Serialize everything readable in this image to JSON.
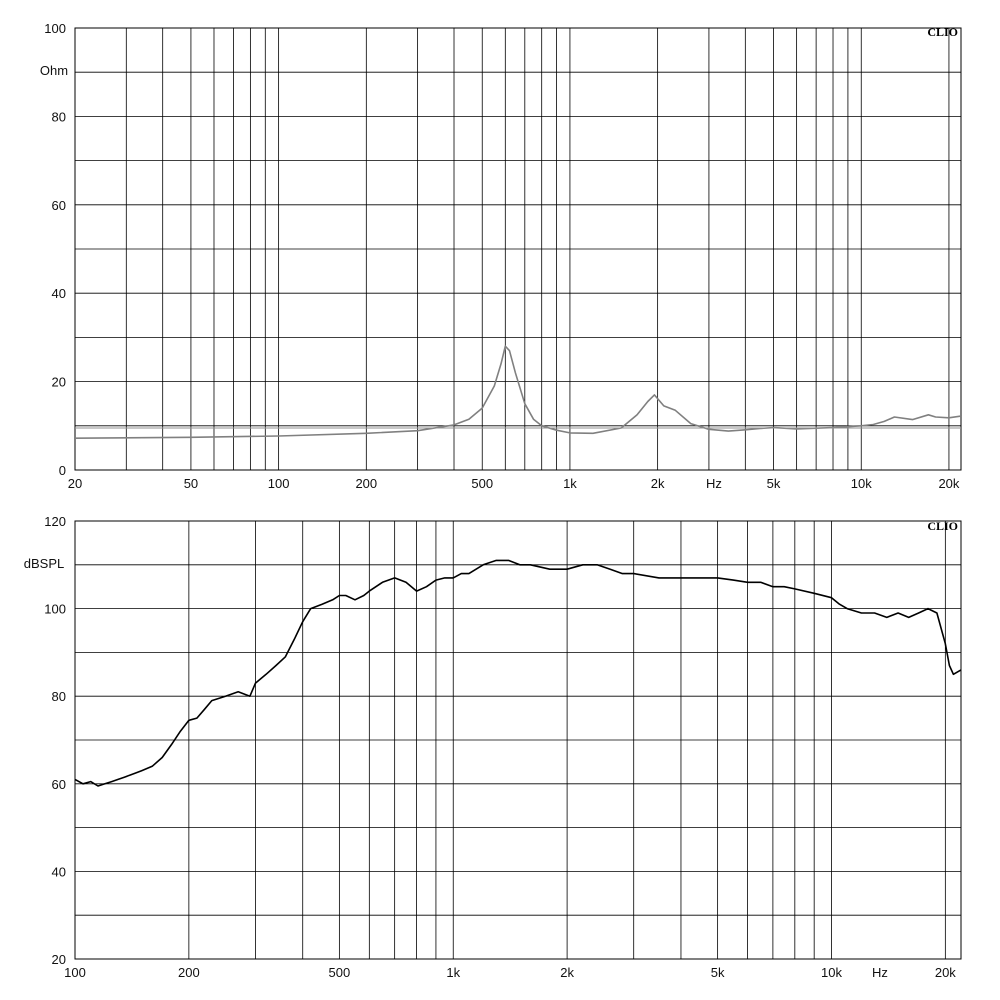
{
  "chart_data": [
    {
      "type": "line",
      "brand": "CLIO",
      "ylabel": "Ohm",
      "xunit": "Hz",
      "x_scale": "log",
      "xlim": [
        20,
        22000
      ],
      "ylim": [
        0,
        100
      ],
      "y_ticks": [
        {
          "v": 0,
          "t": "0"
        },
        {
          "v": 20,
          "t": "20"
        },
        {
          "v": 40,
          "t": "40"
        },
        {
          "v": 60,
          "t": "60"
        },
        {
          "v": 80,
          "t": "80"
        },
        {
          "v": 100,
          "t": "100"
        }
      ],
      "x_ticks": [
        {
          "v": 20,
          "t": "20"
        },
        {
          "v": 50,
          "t": "50"
        },
        {
          "v": 100,
          "t": "100"
        },
        {
          "v": 200,
          "t": "200"
        },
        {
          "v": 500,
          "t": "500"
        },
        {
          "v": 1000,
          "t": "1k"
        },
        {
          "v": 2000,
          "t": "2k"
        },
        {
          "v": 5000,
          "t": "5k"
        },
        {
          "v": 10000,
          "t": "10k"
        },
        {
          "v": 20000,
          "t": "20k"
        }
      ],
      "grid": true,
      "series": [
        {
          "color": "#808080",
          "x": [
            20,
            50,
            100,
            200,
            300,
            400,
            450,
            500,
            550,
            580,
            600,
            620,
            650,
            700,
            750,
            800,
            900,
            1000,
            1200,
            1500,
            1700,
            1850,
            1950,
            2100,
            2300,
            2600,
            3000,
            3500,
            4000,
            4500,
            5000,
            6000,
            8000,
            10000,
            11000,
            12000,
            13000,
            15000,
            17000,
            18000,
            20000,
            22000
          ],
          "y": [
            7.2,
            7.4,
            7.7,
            8.3,
            8.9,
            10.2,
            11.5,
            14,
            19,
            24,
            28,
            27,
            22,
            15,
            11.5,
            10,
            9,
            8.4,
            8.3,
            9.5,
            12.5,
            15.5,
            17,
            14.5,
            13.5,
            10.5,
            9.2,
            8.8,
            9.1,
            9.4,
            9.6,
            9.3,
            9.6,
            10,
            10.3,
            11,
            12,
            11.4,
            12.5,
            12,
            11.8,
            12.2
          ]
        },
        {
          "color": "#909090",
          "x": [
            20,
            22000
          ],
          "y": [
            9.5,
            9.5
          ]
        }
      ]
    },
    {
      "type": "line",
      "brand": "CLIO",
      "ylabel": "dBSPL",
      "xunit": "Hz",
      "x_scale": "log",
      "xlim": [
        100,
        22000
      ],
      "ylim": [
        20,
        120
      ],
      "y_ticks": [
        {
          "v": 20,
          "t": "20"
        },
        {
          "v": 40,
          "t": "40"
        },
        {
          "v": 60,
          "t": "60"
        },
        {
          "v": 80,
          "t": "80"
        },
        {
          "v": 100,
          "t": "100"
        },
        {
          "v": 120,
          "t": "120"
        }
      ],
      "x_ticks": [
        {
          "v": 100,
          "t": "100"
        },
        {
          "v": 200,
          "t": "200"
        },
        {
          "v": 500,
          "t": "500"
        },
        {
          "v": 1000,
          "t": "1k"
        },
        {
          "v": 2000,
          "t": "2k"
        },
        {
          "v": 5000,
          "t": "5k"
        },
        {
          "v": 10000,
          "t": "10k"
        },
        {
          "v": 20000,
          "t": "20k"
        }
      ],
      "grid": true,
      "series": [
        {
          "color": "#000000",
          "x": [
            100,
            105,
            110,
            115,
            120,
            125,
            130,
            135,
            140,
            145,
            150,
            160,
            170,
            180,
            190,
            200,
            210,
            220,
            230,
            250,
            270,
            290,
            300,
            320,
            340,
            360,
            380,
            400,
            420,
            450,
            480,
            500,
            520,
            550,
            580,
            600,
            650,
            700,
            750,
            800,
            850,
            900,
            950,
            1000,
            1050,
            1100,
            1200,
            1300,
            1400,
            1500,
            1600,
            1800,
            2000,
            2200,
            2400,
            2600,
            2800,
            3000,
            3500,
            4000,
            4500,
            5000,
            5500,
            6000,
            6500,
            7000,
            7500,
            8000,
            9000,
            10000,
            10500,
            11000,
            12000,
            13000,
            14000,
            15000,
            16000,
            17000,
            18000,
            19000,
            20000,
            20500,
            21000,
            22000
          ],
          "y": [
            61,
            60,
            60.5,
            59.5,
            60,
            60.5,
            61,
            61.5,
            62,
            62.5,
            63,
            64,
            66,
            69,
            72,
            74.5,
            75,
            77,
            79,
            80,
            81,
            80,
            83,
            85,
            87,
            89,
            93,
            97,
            100,
            101,
            102,
            103,
            103,
            102,
            103,
            104,
            106,
            107,
            106,
            104,
            105,
            106.5,
            107,
            107,
            108,
            108,
            110,
            111,
            111,
            110,
            110,
            109,
            109,
            110,
            110,
            109,
            108,
            108,
            107,
            107,
            107,
            107,
            106.5,
            106,
            106,
            105,
            105,
            104.5,
            103.5,
            102.5,
            101,
            100,
            99,
            99,
            98,
            99,
            98,
            99,
            100,
            99,
            92,
            87,
            85,
            86
          ]
        }
      ]
    }
  ]
}
